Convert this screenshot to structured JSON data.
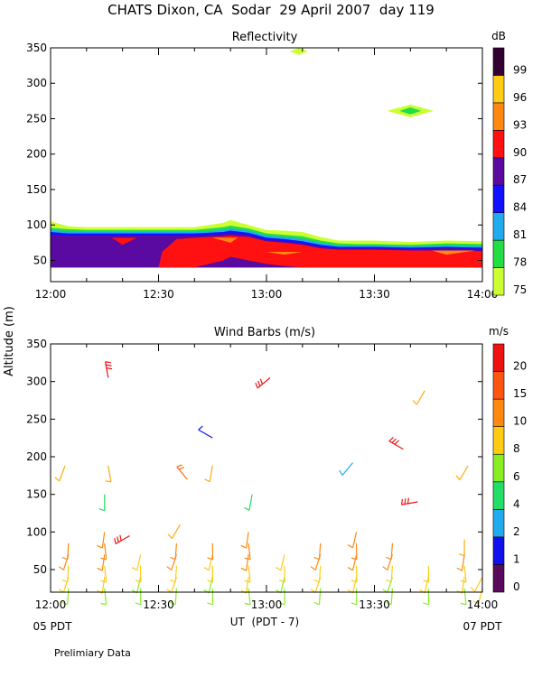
{
  "title": "CHATS Dixon, CA  Sodar  29 April 2007  day 119",
  "footnote": "Prelimiary Data",
  "y_axis_label": "Altitude (m)",
  "x_axis_label": "UT  (PDT - 7)",
  "start_local": "05 PDT",
  "end_local": "07 PDT",
  "chart_data": [
    {
      "type": "heatmap",
      "title": "Reflectivity",
      "colorbar_unit": "dB",
      "colorbar_levels": [
        "75",
        "78",
        "81",
        "84",
        "87",
        "90",
        "93",
        "96",
        "99"
      ],
      "colorbar_colors": [
        "#ccff33",
        "#22dd44",
        "#22aaee",
        "#1111ff",
        "#5a0aa0",
        "#ff1111",
        "#ff8811",
        "#ffcc11",
        "#330033"
      ],
      "x_ticks": [
        "12:00",
        "12:30",
        "13:00",
        "13:30",
        "14:00"
      ],
      "x_tick_values": [
        0,
        30,
        60,
        90,
        120
      ],
      "y_ticks": [
        "50",
        "100",
        "150",
        "200",
        "250",
        "300",
        "350"
      ],
      "y_tick_values": [
        50,
        100,
        150,
        200,
        250,
        300,
        350
      ],
      "xlim": [
        0,
        120
      ],
      "ylim": [
        20,
        350
      ],
      "xlabel": "UT  (PDT - 7)",
      "ylabel": "Altitude (m)",
      "layers": [
        {
          "name": "75 dB",
          "color": "#ccff33",
          "x": [
            0,
            5,
            10,
            20,
            30,
            40,
            48,
            50,
            55,
            60,
            65,
            70,
            75,
            80,
            85,
            90,
            100,
            110,
            120
          ],
          "top": [
            105,
            98,
            97,
            97,
            97,
            97,
            103,
            107,
            100,
            93,
            92,
            90,
            83,
            78,
            78,
            78,
            76,
            78,
            77
          ],
          "bottom": [
            40,
            40,
            40,
            40,
            40,
            40,
            40,
            40,
            40,
            40,
            40,
            40,
            40,
            40,
            40,
            40,
            40,
            40,
            40
          ]
        },
        {
          "name": "78 dB",
          "color": "#22dd44",
          "x": [
            0,
            5,
            10,
            20,
            30,
            40,
            48,
            50,
            55,
            60,
            65,
            70,
            75,
            80,
            85,
            90,
            100,
            110,
            120
          ],
          "top": [
            96,
            94,
            93,
            93,
            93,
            93,
            97,
            99,
            95,
            88,
            86,
            84,
            78,
            74,
            73,
            73,
            72,
            74,
            73
          ],
          "bottom": [
            40,
            40,
            40,
            40,
            40,
            40,
            40,
            40,
            40,
            40,
            40,
            40,
            40,
            40,
            40,
            40,
            40,
            40,
            40
          ]
        },
        {
          "name": "81 dB",
          "color": "#22aaee",
          "x": [
            0,
            5,
            10,
            20,
            30,
            40,
            48,
            50,
            55,
            60,
            65,
            70,
            75,
            80,
            85,
            90,
            100,
            110,
            120
          ],
          "top": [
            93,
            91,
            90,
            90,
            90,
            90,
            93,
            95,
            92,
            85,
            83,
            80,
            75,
            71,
            71,
            71,
            70,
            71,
            70
          ],
          "bottom": [
            40,
            40,
            40,
            40,
            40,
            40,
            40,
            40,
            40,
            40,
            40,
            40,
            40,
            40,
            40,
            40,
            40,
            40,
            40
          ]
        },
        {
          "name": "84 dB",
          "color": "#1111ff",
          "x": [
            0,
            5,
            10,
            20,
            30,
            40,
            48,
            50,
            55,
            60,
            65,
            70,
            75,
            80,
            85,
            90,
            100,
            110,
            120
          ],
          "top": [
            90,
            88,
            88,
            88,
            88,
            88,
            90,
            92,
            89,
            82,
            80,
            77,
            72,
            69,
            69,
            69,
            68,
            69,
            68
          ],
          "bottom": [
            40,
            40,
            40,
            40,
            40,
            40,
            40,
            40,
            40,
            40,
            40,
            40,
            40,
            40,
            40,
            40,
            40,
            40,
            40
          ]
        },
        {
          "name": "87 dB",
          "color": "#5a0aa0",
          "x": [
            0,
            5,
            10,
            20,
            30,
            40,
            48,
            50,
            55,
            60,
            65,
            70,
            75,
            80,
            85,
            90,
            100,
            110,
            120
          ],
          "top": [
            86,
            85,
            85,
            85,
            85,
            85,
            87,
            88,
            86,
            79,
            77,
            74,
            69,
            67,
            67,
            67,
            66,
            67,
            66
          ],
          "bottom": [
            40,
            40,
            40,
            40,
            40,
            40,
            40,
            40,
            40,
            40,
            40,
            40,
            40,
            40,
            40,
            40,
            40,
            40,
            40
          ]
        },
        {
          "name": "90 dB",
          "color": "#ff1111",
          "x": [
            0,
            30,
            31,
            35,
            40,
            48,
            50,
            55,
            60,
            65,
            70,
            75,
            80,
            85,
            90,
            100,
            110,
            120
          ],
          "top": [
            40,
            40,
            62,
            80,
            82,
            84,
            85,
            83,
            77,
            75,
            72,
            67,
            65,
            65,
            65,
            64,
            64,
            63
          ],
          "bottom": [
            40,
            40,
            40,
            40,
            40,
            50,
            55,
            50,
            45,
            42,
            40,
            40,
            40,
            40,
            40,
            40,
            40,
            40
          ]
        },
        {
          "name": "90 dB patch",
          "color": "#ff1111",
          "x": [
            17,
            20,
            24
          ],
          "top": [
            82,
            82,
            82
          ],
          "bottom": [
            82,
            72,
            82
          ]
        },
        {
          "name": "93 dB patch A",
          "color": "#ff8811",
          "x": [
            45,
            50,
            52
          ],
          "top": [
            82,
            82,
            82
          ],
          "bottom": [
            82,
            75,
            82
          ]
        },
        {
          "name": "93 dB patch B",
          "color": "#ff8811",
          "x": [
            60,
            65,
            70
          ],
          "top": [
            62,
            62,
            62
          ],
          "bottom": [
            62,
            58,
            62
          ]
        },
        {
          "name": "93 dB patch C",
          "color": "#ff8811",
          "x": [
            106,
            110,
            118
          ],
          "top": [
            64,
            64,
            64
          ],
          "bottom": [
            64,
            58,
            64
          ]
        },
        {
          "name": "90 dB notch",
          "color": "#ff1111",
          "x": [
            77,
            79,
            81
          ],
          "top": [
            62,
            62,
            62
          ],
          "bottom": [
            62,
            52,
            62
          ]
        }
      ],
      "blobs": [
        {
          "x": 69,
          "y": 345,
          "half_width": 2.5,
          "half_height": 5,
          "color": "#ccff33"
        },
        {
          "x": 100,
          "y": 261,
          "half_width": 6.5,
          "half_height": 9,
          "color": "#ccff33"
        },
        {
          "x": 100,
          "y": 261,
          "half_width": 3,
          "half_height": 5,
          "color": "#22dd44"
        }
      ]
    },
    {
      "type": "scatter",
      "title": "Wind Barbs (m/s)",
      "colorbar_unit": "m/s",
      "colorbar_levels": [
        "0",
        "1",
        "2",
        "4",
        "6",
        "8",
        "10",
        "15",
        "20"
      ],
      "colorbar_colors": [
        "#5a0a5a",
        "#1111ee",
        "#22aaee",
        "#22dd66",
        "#88ee22",
        "#ffcc11",
        "#ff8811",
        "#ff5511",
        "#ee1111"
      ],
      "x_ticks": [
        "12:00",
        "12:30",
        "13:00",
        "13:30",
        "14:00"
      ],
      "x_tick_values": [
        0,
        30,
        60,
        90,
        120
      ],
      "y_ticks": [
        "50",
        "100",
        "150",
        "200",
        "250",
        "300",
        "350"
      ],
      "y_tick_values": [
        50,
        100,
        150,
        200,
        250,
        300,
        350
      ],
      "xlim": [
        0,
        120
      ],
      "ylim": [
        20,
        350
      ],
      "xlabel": "UT  (PDT - 7)",
      "ylabel": "Altitude (m)",
      "barbs": [
        {
          "t": 16,
          "z": 305,
          "dir": 350,
          "speed": 22,
          "color": "#ee1111"
        },
        {
          "t": 61,
          "z": 305,
          "dir": 230,
          "speed": 22,
          "color": "#ee1111"
        },
        {
          "t": 104,
          "z": 288,
          "dir": 210,
          "speed": 10,
          "color": "#ffaa11"
        },
        {
          "t": 45,
          "z": 225,
          "dir": 300,
          "speed": 1,
          "color": "#1111ee"
        },
        {
          "t": 98,
          "z": 210,
          "dir": 300,
          "speed": 22,
          "color": "#ee1111"
        },
        {
          "t": 84,
          "z": 192,
          "dir": 220,
          "speed": 2,
          "color": "#22aaee"
        },
        {
          "t": 4,
          "z": 188,
          "dir": 200,
          "speed": 10,
          "color": "#ffaa11"
        },
        {
          "t": 16,
          "z": 188,
          "dir": 170,
          "speed": 10,
          "color": "#ffaa11"
        },
        {
          "t": 45,
          "z": 188,
          "dir": 190,
          "speed": 10,
          "color": "#ffaa11"
        },
        {
          "t": 116,
          "z": 188,
          "dir": 210,
          "speed": 10,
          "color": "#ffaa11"
        },
        {
          "t": 38,
          "z": 170,
          "dir": 320,
          "speed": 12,
          "color": "#ff6611"
        },
        {
          "t": 15,
          "z": 150,
          "dir": 180,
          "speed": 4,
          "color": "#22dd66"
        },
        {
          "t": 56,
          "z": 150,
          "dir": 190,
          "speed": 4,
          "color": "#22dd66"
        },
        {
          "t": 102,
          "z": 140,
          "dir": 260,
          "speed": 22,
          "color": "#ee1111"
        },
        {
          "t": 36,
          "z": 110,
          "dir": 210,
          "speed": 10,
          "color": "#ffaa11"
        },
        {
          "t": 22,
          "z": 95,
          "dir": 240,
          "speed": 22,
          "color": "#ee1111"
        },
        {
          "t": 115,
          "z": 90,
          "dir": 180,
          "speed": 10,
          "color": "#ffaa11"
        }
      ],
      "profile_columns": [
        {
          "t": 5,
          "dir": 190,
          "z": [
            25,
            40,
            55,
            70,
            85
          ],
          "colors": [
            "#88ee22",
            "#ffcc11",
            "#ffcc11",
            "#ff8811",
            "#ff8811"
          ]
        },
        {
          "t": 15,
          "dir": 180,
          "z": [
            25,
            40,
            55,
            70,
            85,
            100
          ],
          "colors": [
            "#88ee22",
            "#ffcc11",
            "#ffcc11",
            "#ff8811",
            "#ff8811",
            "#ff8811"
          ]
        },
        {
          "t": 25,
          "dir": 185,
          "z": [
            25,
            40,
            55,
            70
          ],
          "colors": [
            "#88ee22",
            "#88ee22",
            "#ffcc11",
            "#ffcc11"
          ]
        },
        {
          "t": 35,
          "dir": 190,
          "z": [
            25,
            40,
            55,
            70,
            85
          ],
          "colors": [
            "#88ee22",
            "#ffcc11",
            "#ffcc11",
            "#ff8811",
            "#ff8811"
          ]
        },
        {
          "t": 45,
          "dir": 185,
          "z": [
            25,
            40,
            55,
            70,
            85
          ],
          "colors": [
            "#88ee22",
            "#88ee22",
            "#ffcc11",
            "#ffcc11",
            "#ff8811"
          ]
        },
        {
          "t": 55,
          "dir": 180,
          "z": [
            25,
            40,
            55,
            70,
            85,
            100
          ],
          "colors": [
            "#88ee22",
            "#ffcc11",
            "#ffcc11",
            "#ff8811",
            "#ff8811",
            "#ff8811"
          ]
        },
        {
          "t": 65,
          "dir": 185,
          "z": [
            25,
            40,
            55,
            70
          ],
          "colors": [
            "#88ee22",
            "#88ee22",
            "#ffcc11",
            "#ffcc11"
          ]
        },
        {
          "t": 75,
          "dir": 190,
          "z": [
            25,
            40,
            55,
            70,
            85
          ],
          "colors": [
            "#88ee22",
            "#ffcc11",
            "#ffcc11",
            "#ff8811",
            "#ff8811"
          ]
        },
        {
          "t": 85,
          "dir": 185,
          "z": [
            25,
            40,
            55,
            70,
            85,
            100
          ],
          "colors": [
            "#88ee22",
            "#ffcc11",
            "#ffcc11",
            "#ff8811",
            "#ff8811",
            "#ff8811"
          ]
        },
        {
          "t": 95,
          "dir": 190,
          "z": [
            25,
            40,
            55,
            70,
            85
          ],
          "colors": [
            "#88ee22",
            "#88ee22",
            "#ffcc11",
            "#ff8811",
            "#ff8811"
          ]
        },
        {
          "t": 105,
          "dir": 185,
          "z": [
            25,
            40,
            55
          ],
          "colors": [
            "#88ee22",
            "#ffcc11",
            "#ffcc11"
          ]
        },
        {
          "t": 115,
          "dir": 180,
          "z": [
            25,
            40,
            55,
            70
          ],
          "colors": [
            "#88ee22",
            "#ffcc11",
            "#ffcc11",
            "#ff8811"
          ]
        },
        {
          "t": 120,
          "dir": 200,
          "z": [
            25,
            40
          ],
          "colors": [
            "#ffcc11",
            "#ffcc11"
          ]
        }
      ]
    }
  ]
}
